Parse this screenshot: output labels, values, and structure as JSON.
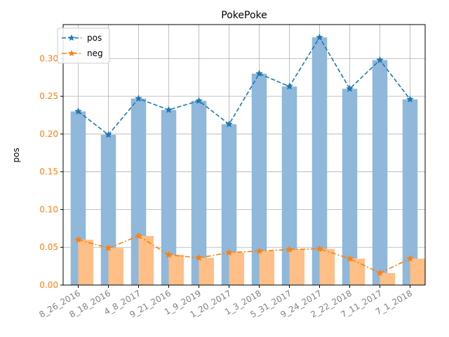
{
  "chart_data": {
    "type": "bar",
    "title": "PokePoke",
    "xlabel": "",
    "ylabel": "pos",
    "ylim": [
      0,
      0.345
    ],
    "yticks": [
      "0.00",
      "0.05",
      "0.10",
      "0.15",
      "0.20",
      "0.25",
      "0.30"
    ],
    "categories": [
      "8_26_2016",
      "8_18_2016",
      "4_8_2017",
      "9_21_2016",
      "1_9_2019",
      "1_20_2017",
      "1_3_2018",
      "5_31_2017",
      "9_24_2017",
      "2_22_2018",
      "7_11_2017",
      "7_1_2018"
    ],
    "grid": true,
    "legend_position": "top-left",
    "series": [
      {
        "name": "pos",
        "color": "#1f77b4",
        "bar_color": "#8fb8da",
        "line_style": "dashed",
        "marker": "star",
        "values": [
          0.23,
          0.199,
          0.247,
          0.232,
          0.244,
          0.213,
          0.28,
          0.263,
          0.328,
          0.26,
          0.298,
          0.246
        ]
      },
      {
        "name": "neg",
        "color": "#ff7f0e",
        "bar_color": "#ffbf86",
        "line_style": "dashdot",
        "marker": "star",
        "values": [
          0.06,
          0.049,
          0.065,
          0.04,
          0.036,
          0.043,
          0.045,
          0.047,
          0.048,
          0.035,
          0.016,
          0.035
        ]
      }
    ],
    "tick_label_color": "#808080",
    "ytick_label_color": "#ff7f0e"
  }
}
